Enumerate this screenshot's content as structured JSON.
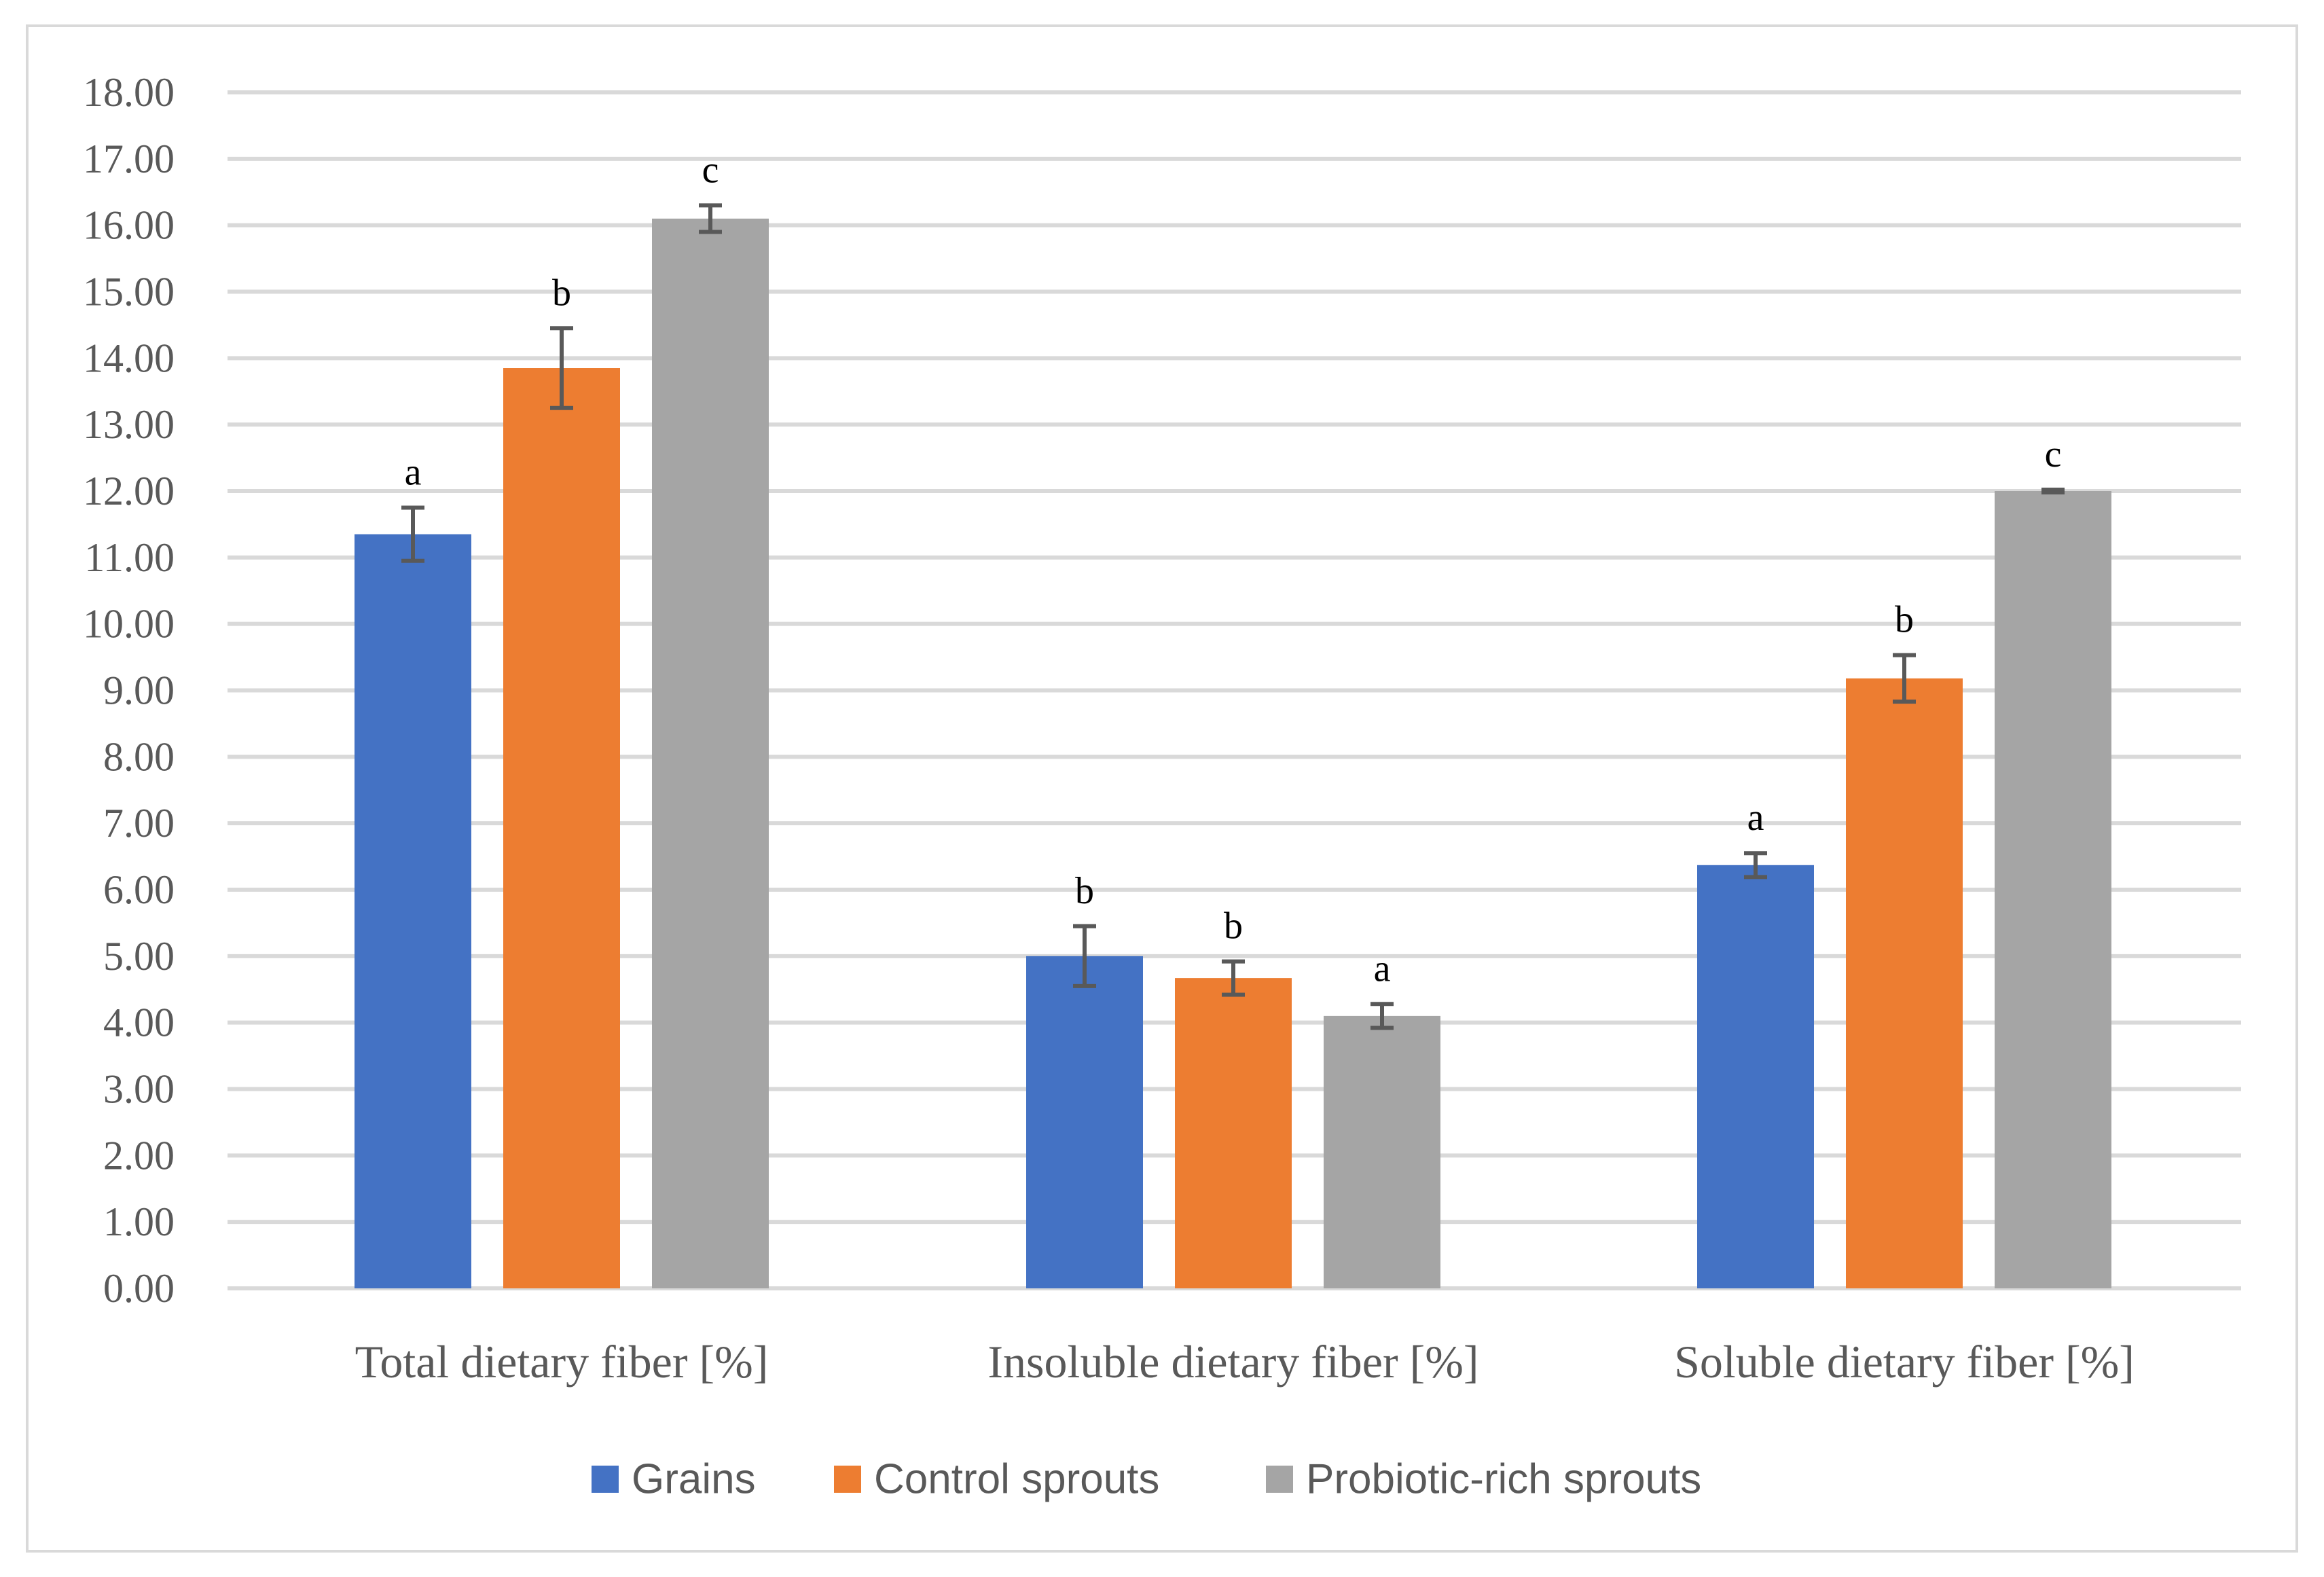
{
  "chart_data": {
    "type": "bar",
    "title": "",
    "xlabel": "",
    "ylabel": "",
    "ylim": [
      0,
      18
    ],
    "ytick_step": 1,
    "ytick_decimals": 2,
    "grid": true,
    "legend_position": "bottom",
    "categories": [
      "Total dietary fiber [%]",
      "Insoluble dietary fiber [%]",
      "Soluble dietary fiber [%]"
    ],
    "series": [
      {
        "name": "Grains",
        "color": "#4472c4",
        "values": [
          11.35,
          5.0,
          6.37
        ],
        "errors": [
          0.4,
          0.45,
          0.18
        ],
        "letters": [
          "a",
          "b",
          "a"
        ]
      },
      {
        "name": "Control sprouts",
        "color": "#ed7d31",
        "values": [
          13.85,
          4.67,
          9.18
        ],
        "errors": [
          0.6,
          0.25,
          0.35
        ],
        "letters": [
          "b",
          "b",
          "b"
        ]
      },
      {
        "name": "Probiotic-rich sprouts",
        "color": "#a5a5a5",
        "values": [
          16.1,
          4.1,
          12.0
        ],
        "errors": [
          0.2,
          0.18,
          0.02
        ],
        "letters": [
          "c",
          "a",
          "c"
        ]
      }
    ]
  }
}
